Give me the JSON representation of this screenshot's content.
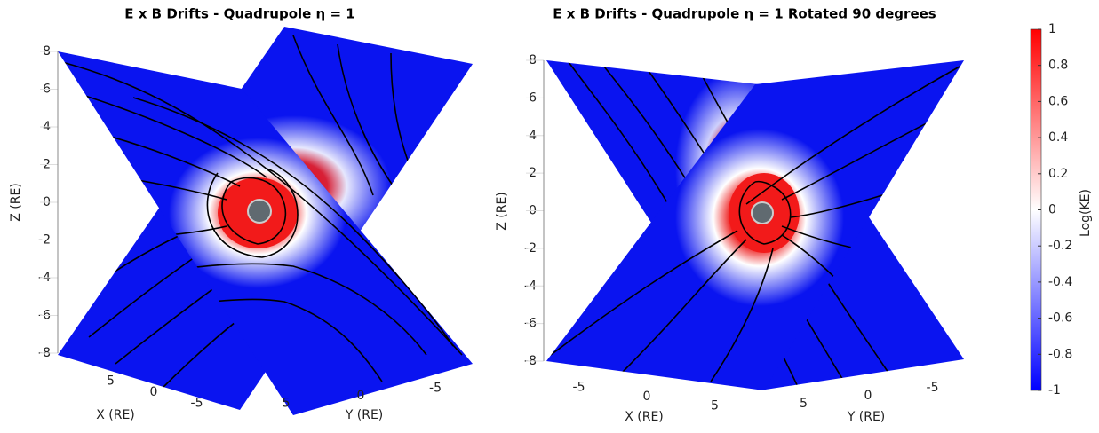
{
  "chart_data": [
    {
      "type": "surface3d",
      "title": "E x B Drifts - Quadrupole η = 1",
      "xlabel": "X (RE)",
      "ylabel": "Y (RE)",
      "zlabel": "Z (RE)",
      "xlim": [
        -8,
        8
      ],
      "ylim": [
        -8,
        8
      ],
      "zlim": [
        -8,
        8
      ],
      "xticks": [
        5,
        0,
        -5
      ],
      "yticks": [
        5,
        0,
        -5
      ],
      "zticks": [
        8,
        6,
        4,
        2,
        0,
        -2,
        -4,
        -6,
        -8
      ],
      "grid": true
    },
    {
      "type": "surface3d",
      "title": "E x B Drifts - Quadrupole η = 1 Rotated 90 degrees",
      "xlabel": "X (RE)",
      "ylabel": "Y (RE)",
      "zlabel": "Z (RE)",
      "xlim": [
        -8,
        8
      ],
      "ylim": [
        -8,
        8
      ],
      "zlim": [
        -8,
        8
      ],
      "xticks": [
        -5,
        0,
        5
      ],
      "yticks": [
        5,
        0,
        -5
      ],
      "zticks": [
        8,
        6,
        4,
        2,
        0,
        -2,
        -4,
        -6,
        -8
      ],
      "grid": true
    }
  ],
  "colorbar": {
    "label": "Log(KE)",
    "clim": [
      -1,
      1
    ],
    "ticks": [
      1,
      0.8,
      0.6,
      0.4,
      0.2,
      0,
      -0.2,
      -0.4,
      -0.6,
      -0.8,
      -1
    ],
    "colormap": [
      "#0000ff",
      "#ffffff",
      "#ff0000"
    ]
  }
}
